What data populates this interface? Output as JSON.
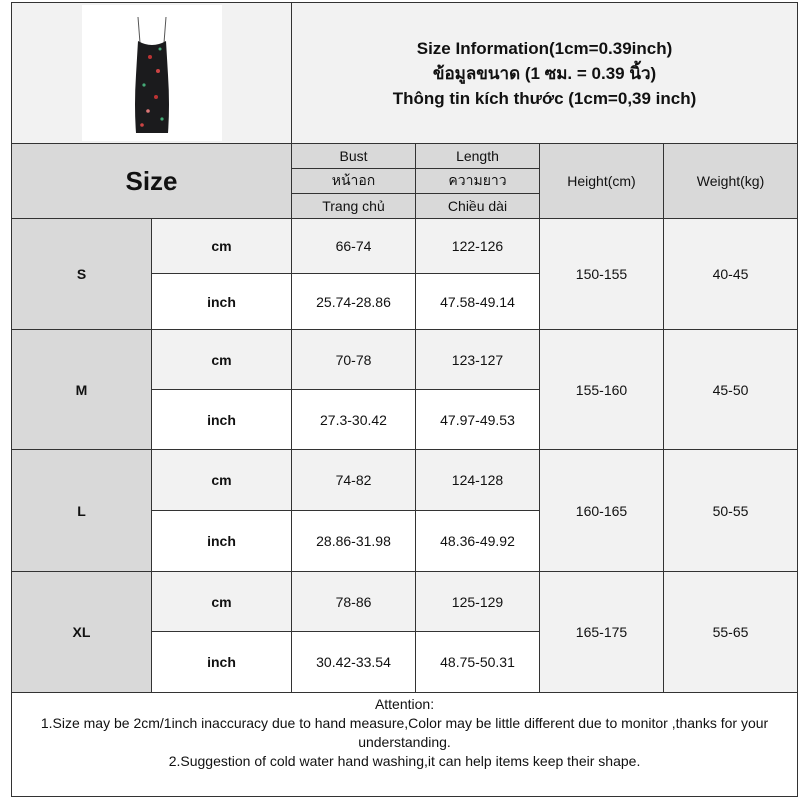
{
  "title_lines": [
    "Size Information(1cm=0.39inch)",
    "ข้อมูลขนาด (1 ซม. = 0.39 นิ้ว)",
    "Thông tin kích thước (1cm=0,39 inch)"
  ],
  "header": {
    "size": "Size",
    "bust": [
      "Bust",
      "หน้าอก",
      "Trang chủ"
    ],
    "length": [
      "Length",
      "ความยาว",
      "Chiều dài"
    ],
    "height": "Height(cm)",
    "weight": "Weight(kg)"
  },
  "rows": [
    {
      "size": "S",
      "cm_label": "cm",
      "inch_label": "inch",
      "bust_cm": "66-74",
      "length_cm": "122-126",
      "bust_inch": "25.74-28.86",
      "length_inch": "47.58-49.14",
      "height": "150-155",
      "weight": "40-45"
    },
    {
      "size": "M",
      "cm_label": "cm",
      "inch_label": "inch",
      "bust_cm": "70-78",
      "length_cm": "123-127",
      "bust_inch": "27.3-30.42",
      "length_inch": "47.97-49.53",
      "height": "155-160",
      "weight": "45-50"
    },
    {
      "size": "L",
      "cm_label": "cm",
      "inch_label": "inch",
      "bust_cm": "74-82",
      "length_cm": "124-128",
      "bust_inch": "28.86-31.98",
      "length_inch": "48.36-49.92",
      "height": "160-165",
      "weight": "50-55"
    },
    {
      "size": "XL",
      "cm_label": "cm",
      "inch_label": "inch",
      "bust_cm": "78-86",
      "length_cm": "125-129",
      "bust_inch": "30.42-33.54",
      "length_inch": "48.75-50.31",
      "height": "165-175",
      "weight": "55-65"
    }
  ],
  "notes": {
    "heading": "Attention:",
    "line1": "1.Size may be 2cm/1inch inaccuracy due to hand measure,Color may be little different due to monitor ,thanks for your understanding.",
    "line2": "2.Suggestion of cold water hand washing,it can help items keep their shape."
  },
  "colors": {
    "header_bg": "#d9d9d9",
    "light_bg": "#f2f2f2",
    "border": "#333333"
  }
}
